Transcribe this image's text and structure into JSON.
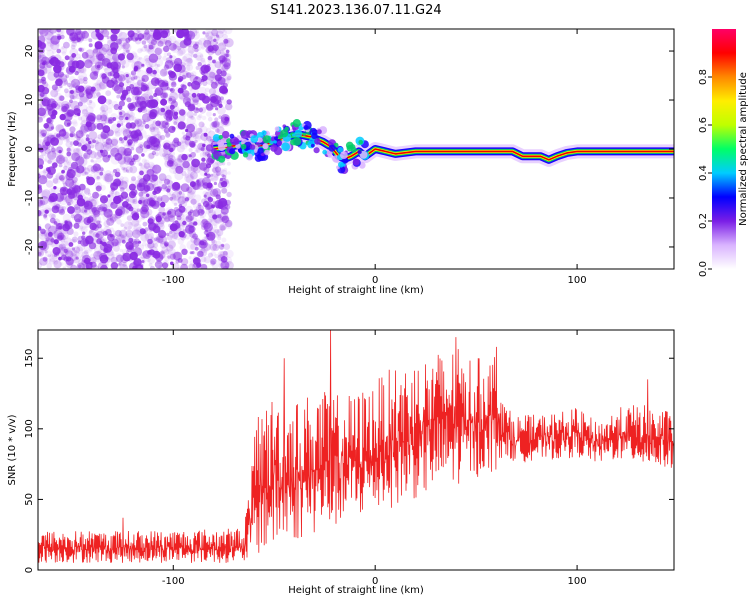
{
  "figure_title": "S141.2023.136.07.11.G24",
  "chart_data": [
    {
      "type": "heatmap",
      "title": "",
      "xlabel": "Height of straight line (km)",
      "ylabel": "Frequency (Hz)",
      "xlim": [
        -167,
        148
      ],
      "ylim": [
        -24.5,
        24.5
      ],
      "xticks": [
        "-100",
        "0",
        "100"
      ],
      "yticks": [
        "20",
        "10",
        "0",
        "-10",
        "-20"
      ],
      "colorbar": {
        "label": "Normalized spectral amplitude",
        "range": [
          0,
          1
        ],
        "ticks": [
          "0.0",
          "0.2",
          "0.4",
          "0.6",
          "0.8"
        ],
        "colors": [
          "#ffffff",
          "#d9b3ff",
          "#7a1ee6",
          "#0000ff",
          "#00ccff",
          "#00ff66",
          "#bfff00",
          "#ffee00",
          "#ff8800",
          "#ff0000",
          "#ff0066"
        ]
      },
      "noise_region": {
        "x_from": -167,
        "x_to": -75,
        "color": "#8a2be2"
      },
      "ridge": {
        "x": [
          -80,
          -72,
          -65,
          -58,
          -50,
          -44,
          -38,
          -32,
          -26,
          -22,
          -18,
          -15,
          -12,
          -8,
          -5,
          0,
          5,
          10,
          20,
          40,
          60,
          68,
          73,
          78,
          82,
          86,
          90,
          95,
          100,
          120,
          140,
          148
        ],
        "y": [
          0,
          0.5,
          1,
          0.5,
          1.5,
          2.5,
          3,
          2.5,
          1.5,
          0.5,
          -1.5,
          -2,
          -1.5,
          -0.5,
          -1.5,
          0,
          -0.5,
          -1,
          -0.5,
          -0.5,
          -0.5,
          -0.5,
          -1.5,
          -1.5,
          -1.5,
          -2.2,
          -1.5,
          -0.8,
          -0.5,
          -0.5,
          -0.5,
          -0.5
        ]
      }
    },
    {
      "type": "line",
      "title": "",
      "xlabel": "Height of straight line (km)",
      "ylabel": "SNR (10 * v/v)",
      "xlim": [
        -167,
        148
      ],
      "ylim": [
        0,
        170
      ],
      "xticks": [
        "-100",
        "0",
        "100"
      ],
      "yticks": [
        "150",
        "100",
        "50",
        "0"
      ],
      "color": "#ee2222",
      "envelope": {
        "x": [
          -167,
          -120,
          -65,
          -58,
          -50,
          -40,
          -30,
          -20,
          -10,
          0,
          10,
          20,
          30,
          40,
          50,
          60,
          65,
          70,
          80,
          90,
          100,
          110,
          120,
          130,
          140,
          148
        ],
        "lo": [
          5,
          5,
          5,
          10,
          15,
          20,
          25,
          30,
          35,
          40,
          45,
          50,
          55,
          60,
          65,
          70,
          80,
          75,
          78,
          78,
          80,
          75,
          78,
          75,
          72,
          72
        ],
        "hi": [
          28,
          28,
          30,
          115,
          125,
          120,
          128,
          125,
          125,
          135,
          145,
          150,
          155,
          158,
          150,
          155,
          115,
          110,
          110,
          112,
          115,
          105,
          115,
          118,
          115,
          112
        ]
      },
      "peaks": [
        [
          -22,
          170
        ],
        [
          -45,
          150
        ],
        [
          40,
          165
        ],
        [
          60,
          158
        ],
        [
          135,
          135
        ],
        [
          -125,
          37
        ]
      ]
    }
  ]
}
